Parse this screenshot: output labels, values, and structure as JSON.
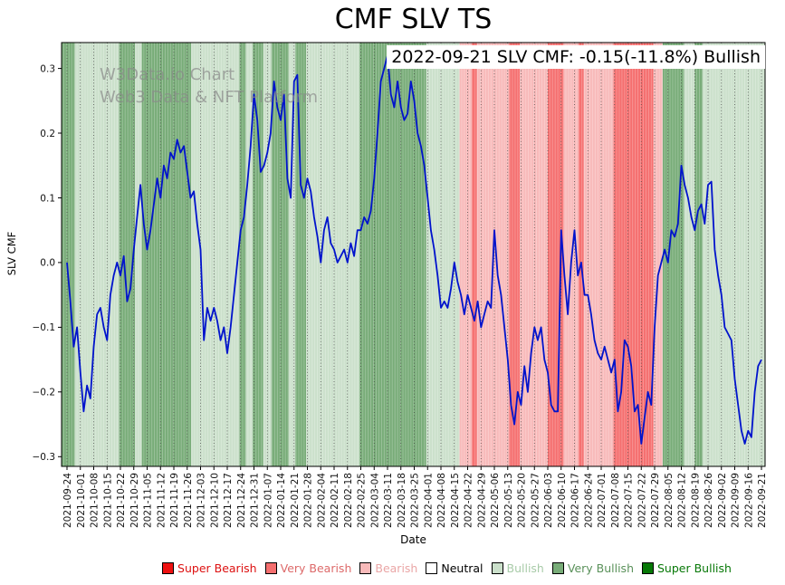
{
  "page": {
    "title": "CMF SLV TS"
  },
  "annotation": {
    "text": "2022-09-21 SLV CMF: -0.15(-11.8%) Bullish"
  },
  "watermark": {
    "line1": "W3Data.io Chart",
    "line2": "Web3 Data & NFT Platform"
  },
  "chart_data": {
    "type": "line",
    "title": "CMF SLV TS",
    "xlabel": "Date",
    "ylabel": "SLV CMF",
    "ylim": [
      -0.315,
      0.34
    ],
    "ytick_values": [
      0.3,
      0.2,
      0.1,
      0.0,
      -0.1,
      -0.2,
      -0.3
    ],
    "ytick_labels": [
      "0.3",
      "0.2",
      "0.1",
      "0.0",
      "−0.1",
      "−0.2",
      "−0.3"
    ],
    "grid": "vertical-dotted",
    "legend_position": "bottom-center",
    "x_tick_labels": [
      "2021-09-24",
      "2021-10-01",
      "2021-10-08",
      "2021-10-15",
      "2021-10-22",
      "2021-10-29",
      "2021-11-05",
      "2021-11-12",
      "2021-11-19",
      "2021-11-26",
      "2021-12-03",
      "2021-12-10",
      "2021-12-17",
      "2021-12-24",
      "2021-12-31",
      "2022-01-07",
      "2022-01-14",
      "2022-01-21",
      "2022-01-28",
      "2022-02-04",
      "2022-02-11",
      "2022-02-18",
      "2022-02-25",
      "2022-03-04",
      "2022-03-11",
      "2022-03-18",
      "2022-03-25",
      "2022-04-01",
      "2022-04-08",
      "2022-04-15",
      "2022-04-22",
      "2022-04-29",
      "2022-05-06",
      "2022-05-13",
      "2022-05-20",
      "2022-05-27",
      "2022-06-03",
      "2022-06-10",
      "2022-06-17",
      "2022-06-24",
      "2022-07-01",
      "2022-07-08",
      "2022-07-15",
      "2022-07-22",
      "2022-07-29",
      "2022-08-05",
      "2022-08-12",
      "2022-08-19",
      "2022-08-26",
      "2022-09-02",
      "2022-09-09",
      "2022-09-16",
      "2022-09-21"
    ],
    "line": {
      "name": "SLV CMF",
      "color": "#0013cc",
      "width": 1.8,
      "points_per_week": 4,
      "values": [
        0.0,
        -0.06,
        -0.13,
        -0.1,
        -0.17,
        -0.23,
        -0.19,
        -0.21,
        -0.13,
        -0.08,
        -0.07,
        -0.1,
        -0.12,
        -0.05,
        -0.02,
        0.0,
        -0.02,
        0.01,
        -0.06,
        -0.04,
        0.02,
        0.07,
        0.12,
        0.06,
        0.02,
        0.05,
        0.09,
        0.13,
        0.1,
        0.15,
        0.13,
        0.17,
        0.16,
        0.19,
        0.17,
        0.18,
        0.14,
        0.1,
        0.11,
        0.06,
        0.02,
        -0.12,
        -0.07,
        -0.09,
        -0.07,
        -0.09,
        -0.12,
        -0.1,
        -0.14,
        -0.1,
        -0.05,
        0.0,
        0.05,
        0.07,
        0.12,
        0.18,
        0.26,
        0.22,
        0.14,
        0.15,
        0.17,
        0.2,
        0.28,
        0.24,
        0.22,
        0.26,
        0.13,
        0.1,
        0.28,
        0.29,
        0.12,
        0.1,
        0.13,
        0.11,
        0.07,
        0.04,
        0.0,
        0.05,
        0.07,
        0.03,
        0.02,
        0.0,
        0.01,
        0.02,
        0.0,
        0.03,
        0.01,
        0.05,
        0.05,
        0.07,
        0.06,
        0.08,
        0.13,
        0.2,
        0.28,
        0.3,
        0.32,
        0.26,
        0.24,
        0.28,
        0.24,
        0.22,
        0.23,
        0.28,
        0.25,
        0.2,
        0.18,
        0.15,
        0.1,
        0.05,
        0.02,
        -0.02,
        -0.07,
        -0.06,
        -0.07,
        -0.04,
        0.0,
        -0.03,
        -0.05,
        -0.08,
        -0.05,
        -0.07,
        -0.09,
        -0.06,
        -0.1,
        -0.08,
        -0.06,
        -0.07,
        0.05,
        -0.02,
        -0.05,
        -0.1,
        -0.15,
        -0.22,
        -0.25,
        -0.2,
        -0.22,
        -0.16,
        -0.2,
        -0.14,
        -0.1,
        -0.12,
        -0.1,
        -0.15,
        -0.17,
        -0.22,
        -0.23,
        -0.23,
        0.05,
        -0.02,
        -0.08,
        0.0,
        0.05,
        -0.02,
        0.0,
        -0.05,
        -0.05,
        -0.08,
        -0.12,
        -0.14,
        -0.15,
        -0.13,
        -0.15,
        -0.17,
        -0.15,
        -0.23,
        -0.2,
        -0.12,
        -0.13,
        -0.16,
        -0.23,
        -0.22,
        -0.28,
        -0.24,
        -0.2,
        -0.22,
        -0.1,
        -0.02,
        0.0,
        0.02,
        0.0,
        0.05,
        0.04,
        0.06,
        0.15,
        0.12,
        0.1,
        0.07,
        0.05,
        0.08,
        0.09,
        0.06,
        0.12,
        0.125,
        0.02,
        -0.02,
        -0.05,
        -0.1,
        -0.11,
        -0.12,
        -0.18,
        -0.22,
        -0.26,
        -0.28,
        -0.26,
        -0.27,
        -0.2,
        -0.16,
        -0.15
      ]
    },
    "sentiment_colors": {
      "super_bearish": "#ee1111",
      "very_bearish": "#f56f6f",
      "bearish": "#f8baba",
      "neutral": "#ffffff",
      "bullish": "#cbe0cb",
      "very_bullish": "#78ac78",
      "super_bullish": "#077807"
    },
    "bands": [
      {
        "from": -0.5,
        "to": 0.6,
        "sentiment": "very_bullish"
      },
      {
        "from": 0.6,
        "to": 3.9,
        "sentiment": "bullish"
      },
      {
        "from": 3.9,
        "to": 5.1,
        "sentiment": "very_bullish"
      },
      {
        "from": 5.1,
        "to": 5.6,
        "sentiment": "bullish"
      },
      {
        "from": 5.6,
        "to": 9.3,
        "sentiment": "very_bullish"
      },
      {
        "from": 9.3,
        "to": 12.9,
        "sentiment": "bullish"
      },
      {
        "from": 12.9,
        "to": 13.4,
        "sentiment": "very_bullish"
      },
      {
        "from": 13.4,
        "to": 13.9,
        "sentiment": "bullish"
      },
      {
        "from": 13.9,
        "to": 14.7,
        "sentiment": "very_bullish"
      },
      {
        "from": 14.7,
        "to": 15.3,
        "sentiment": "bullish"
      },
      {
        "from": 15.3,
        "to": 16.6,
        "sentiment": "very_bullish"
      },
      {
        "from": 16.6,
        "to": 17.1,
        "sentiment": "bullish"
      },
      {
        "from": 17.1,
        "to": 17.9,
        "sentiment": "very_bullish"
      },
      {
        "from": 17.9,
        "to": 21.9,
        "sentiment": "bullish"
      },
      {
        "from": 21.9,
        "to": 26.9,
        "sentiment": "very_bullish"
      },
      {
        "from": 26.9,
        "to": 29.4,
        "sentiment": "bullish"
      },
      {
        "from": 29.4,
        "to": 30.3,
        "sentiment": "bearish"
      },
      {
        "from": 30.3,
        "to": 30.7,
        "sentiment": "very_bearish"
      },
      {
        "from": 30.7,
        "to": 33.1,
        "sentiment": "bearish"
      },
      {
        "from": 33.1,
        "to": 33.9,
        "sentiment": "very_bearish"
      },
      {
        "from": 33.9,
        "to": 36.0,
        "sentiment": "bearish"
      },
      {
        "from": 36.0,
        "to": 37.2,
        "sentiment": "very_bearish"
      },
      {
        "from": 37.2,
        "to": 38.3,
        "sentiment": "bearish"
      },
      {
        "from": 38.3,
        "to": 38.7,
        "sentiment": "very_bearish"
      },
      {
        "from": 38.7,
        "to": 40.9,
        "sentiment": "bearish"
      },
      {
        "from": 40.9,
        "to": 43.9,
        "sentiment": "very_bearish"
      },
      {
        "from": 43.9,
        "to": 44.6,
        "sentiment": "bearish"
      },
      {
        "from": 44.6,
        "to": 46.2,
        "sentiment": "very_bullish"
      },
      {
        "from": 46.2,
        "to": 47.0,
        "sentiment": "bullish"
      },
      {
        "from": 47.0,
        "to": 47.6,
        "sentiment": "very_bullish"
      },
      {
        "from": 47.6,
        "to": 52.4,
        "sentiment": "bullish"
      }
    ],
    "legend": [
      {
        "label": "Super Bearish",
        "sentiment": "super_bearish",
        "text_color": "#dd1111"
      },
      {
        "label": "Very Bearish",
        "sentiment": "very_bearish",
        "text_color": "#dd6a6a"
      },
      {
        "label": "Bearish",
        "sentiment": "bearish",
        "text_color": "#eaa6a6"
      },
      {
        "label": "Neutral",
        "sentiment": "neutral",
        "text_color": "#000000"
      },
      {
        "label": "Bullish",
        "sentiment": "bullish",
        "text_color": "#a8cba8"
      },
      {
        "label": "Very Bullish",
        "sentiment": "very_bullish",
        "text_color": "#5a915a"
      },
      {
        "label": "Super Bullish",
        "sentiment": "super_bullish",
        "text_color": "#077807"
      }
    ]
  }
}
